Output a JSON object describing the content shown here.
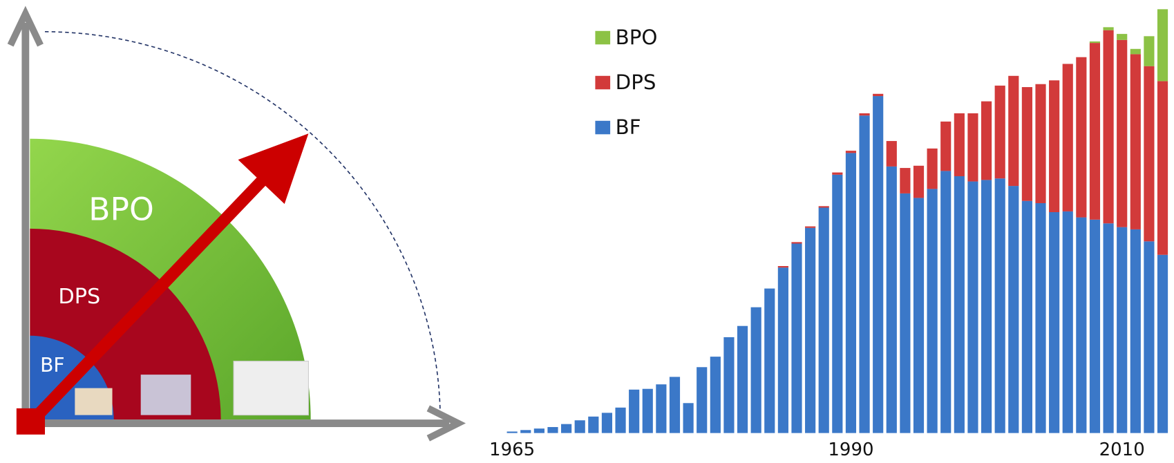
{
  "diagram": {
    "labels": [
      "BPO",
      "DPS",
      "BF"
    ]
  },
  "chart_data": {
    "type": "stacked-bar",
    "categories": [
      "1965",
      null,
      null,
      null,
      null,
      null,
      null,
      null,
      null,
      null,
      null,
      null,
      null,
      null,
      null,
      null,
      null,
      null,
      null,
      null,
      null,
      null,
      null,
      null,
      null,
      "1990",
      null,
      null,
      null,
      null,
      null,
      null,
      null,
      null,
      null,
      null,
      null,
      null,
      null,
      null,
      null,
      null,
      null,
      null,
      null,
      "2010",
      null,
      null,
      null
    ],
    "series": [
      {
        "name": "BF",
        "color": "#3b78c8",
        "values": [
          2,
          4,
          6,
          8,
          12,
          17,
          22,
          27,
          34,
          58,
          59,
          65,
          75,
          40,
          88,
          102,
          128,
          143,
          168,
          193,
          221,
          253,
          274,
          301,
          345,
          374,
          424,
          450,
          356,
          320,
          314,
          326,
          350,
          343,
          336,
          338,
          340,
          330,
          310,
          307,
          295,
          296,
          288,
          285,
          280,
          275,
          272,
          256,
          238
        ]
      },
      {
        "name": "DPS",
        "color": "#d23a3a",
        "values": [
          0,
          0,
          0,
          0,
          0,
          0,
          0,
          0,
          0,
          0,
          0,
          0,
          0,
          0,
          0,
          0,
          0,
          0,
          0,
          0,
          2,
          2,
          2,
          2,
          3,
          3,
          3,
          3,
          34,
          34,
          43,
          54,
          66,
          84,
          91,
          105,
          124,
          147,
          152,
          159,
          176,
          197,
          214,
          236,
          258,
          250,
          234,
          234,
          232
        ]
      },
      {
        "name": "BPO",
        "color": "#8cc245",
        "values": [
          0,
          0,
          0,
          0,
          0,
          0,
          0,
          0,
          0,
          0,
          0,
          0,
          0,
          0,
          0,
          0,
          0,
          0,
          0,
          0,
          0,
          0,
          0,
          0,
          0,
          0,
          0,
          0,
          0,
          0,
          0,
          0,
          0,
          0,
          0,
          0,
          0,
          0,
          0,
          0,
          0,
          0,
          0,
          2,
          4,
          8,
          7,
          40,
          96
        ]
      }
    ],
    "ylim": [
      0,
      578
    ]
  }
}
